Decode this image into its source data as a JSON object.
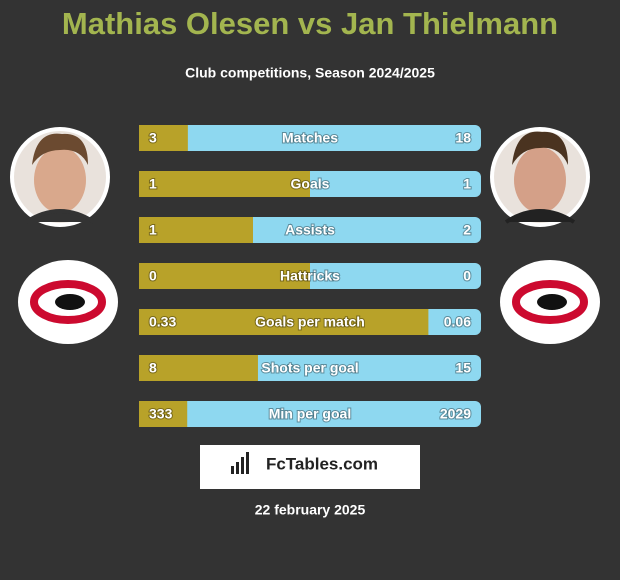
{
  "header": {
    "title": "Mathias Olesen vs Jan Thielmann",
    "subtitle": "Club competitions, Season 2024/2025"
  },
  "rows": [
    {
      "label": "Matches",
      "left": 3,
      "right": 18
    },
    {
      "label": "Goals",
      "left": 1,
      "right": 1
    },
    {
      "label": "Assists",
      "left": 1,
      "right": 2
    },
    {
      "label": "Hattricks",
      "left": 0,
      "right": 0
    },
    {
      "label": "Goals per match",
      "left": 0.33,
      "right": 0.06
    },
    {
      "label": "Shots per goal",
      "left": 8,
      "right": 15
    },
    {
      "label": "Min per goal",
      "left": 333,
      "right": 2029
    }
  ],
  "colors": {
    "left": "#b8a229",
    "right": "#8ed8f0"
  },
  "brand": "FcTables.com",
  "date": "22 february 2025"
}
